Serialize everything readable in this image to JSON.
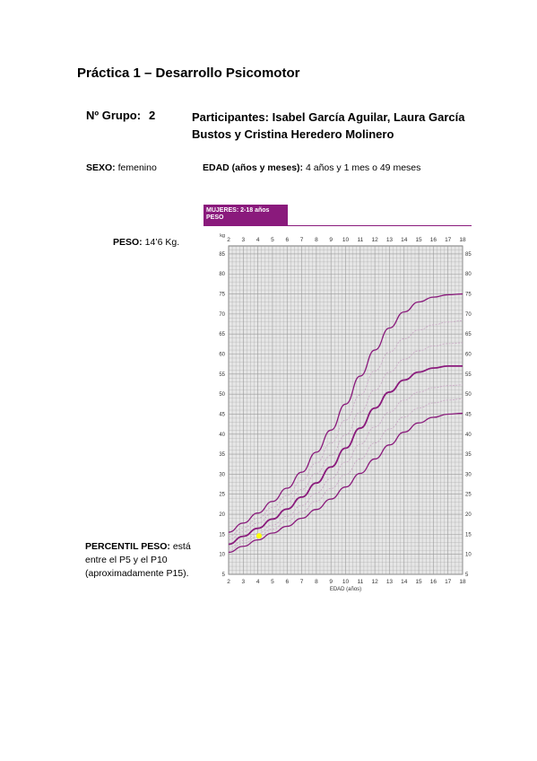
{
  "title": "Práctica 1 – Desarrollo Psicomotor",
  "group": {
    "label": "Nº Grupo:",
    "value": "2"
  },
  "participants": {
    "label": "Participantes:",
    "names": "Isabel García Aguilar, Laura García Bustos y Cristina Heredero Molinero"
  },
  "sex": {
    "label": "SEXO:",
    "value": "femenino"
  },
  "age": {
    "label": "EDAD (años y meses):",
    "value": "4 años y 1 mes o 49 meses"
  },
  "weight": {
    "label": "PESO:",
    "value": "14’6 Kg."
  },
  "percentile": {
    "label": "PERCENTIL PESO:",
    "text_1": "está",
    "line_2": "entre el P5 y el P10",
    "line_3": "(aproximadamente P15)."
  },
  "chart_data": {
    "type": "line",
    "header_line1": "MUJERES: 2-18 años",
    "header_line2": "PESO",
    "y_unit": "kg",
    "xlabel": "EDAD (años)",
    "x_ticks": [
      2,
      3,
      4,
      5,
      6,
      7,
      8,
      9,
      10,
      11,
      12,
      13,
      14,
      15,
      16,
      17,
      18
    ],
    "y_ticks": [
      5,
      10,
      15,
      20,
      25,
      30,
      35,
      40,
      45,
      50,
      55,
      60,
      65,
      70,
      75,
      80,
      85
    ],
    "xlim": [
      2,
      18
    ],
    "ylim": [
      5,
      87
    ],
    "grid": true,
    "series": [
      {
        "x": [
          2,
          3,
          4,
          5,
          6,
          7,
          8,
          9,
          10,
          11,
          12,
          13,
          14,
          15,
          16,
          17,
          18
        ],
        "y": [
          15.5,
          17.8,
          20.3,
          23.2,
          26.5,
          30.5,
          35.5,
          41,
          47.5,
          54.5,
          61,
          66.5,
          70.5,
          73,
          74.2,
          74.8,
          75
        ]
      },
      {
        "x": [
          2,
          3,
          4,
          5,
          6,
          7,
          8,
          9,
          10,
          11,
          12,
          13,
          14,
          15,
          16,
          17,
          18
        ],
        "y": [
          12.5,
          14.5,
          16.5,
          18.8,
          21.3,
          24.3,
          27.8,
          31.8,
          36.5,
          41.5,
          46.5,
          50.5,
          53.5,
          55.5,
          56.5,
          57,
          57
        ]
      },
      {
        "x": [
          2,
          3,
          4,
          5,
          6,
          7,
          8,
          9,
          10,
          11,
          12,
          13,
          14,
          15,
          16,
          17,
          18
        ],
        "y": [
          10.5,
          12,
          13.6,
          15.3,
          17,
          19,
          21.2,
          23.8,
          26.8,
          30.2,
          33.8,
          37.3,
          40.5,
          42.8,
          44.2,
          45,
          45.2
        ]
      },
      {
        "x": [
          2,
          3,
          4,
          5,
          6,
          7,
          8,
          9,
          10,
          11,
          12,
          13,
          14,
          15,
          16,
          17,
          18
        ],
        "y": [
          14.5,
          16.6,
          19,
          21.7,
          24.7,
          28.4,
          32.8,
          37.8,
          43.5,
          49.8,
          55.8,
          60.5,
          63.8,
          66,
          67.3,
          68,
          68.3
        ]
      },
      {
        "x": [
          2,
          3,
          4,
          5,
          6,
          7,
          8,
          9,
          10,
          11,
          12,
          13,
          14,
          15,
          16,
          17,
          18
        ],
        "y": [
          13.6,
          15.6,
          17.8,
          20.3,
          23,
          26.2,
          30.2,
          34.7,
          39.8,
          45.5,
          51,
          55.5,
          58.7,
          60.8,
          62,
          62.6,
          62.8
        ]
      },
      {
        "x": [
          2,
          3,
          4,
          5,
          6,
          7,
          8,
          9,
          10,
          11,
          12,
          13,
          14,
          15,
          16,
          17,
          18
        ],
        "y": [
          11.6,
          13.4,
          15.2,
          17.3,
          19.5,
          22.2,
          25.3,
          28.9,
          33,
          37.5,
          41.8,
          45.5,
          48.5,
          50.5,
          51.6,
          52.1,
          52.3
        ]
      },
      {
        "x": [
          2,
          3,
          4,
          5,
          6,
          7,
          8,
          9,
          10,
          11,
          12,
          13,
          14,
          15,
          16,
          17,
          18
        ],
        "y": [
          11,
          12.7,
          14.4,
          16.3,
          18.3,
          20.6,
          23.3,
          26.4,
          29.9,
          33.8,
          37.8,
          41.3,
          44.3,
          46.5,
          47.8,
          48.5,
          48.8
        ]
      }
    ],
    "marker": {
      "x": 4.08,
      "y": 14.6,
      "color": "#ffff00"
    },
    "colors": {
      "header": "#8a1a7c",
      "main_curves": "#8a1a7c",
      "secondary_curves": "#c9a6c5",
      "grid": "#9a9a9a",
      "plot_bg": "#e6e6e6"
    }
  }
}
